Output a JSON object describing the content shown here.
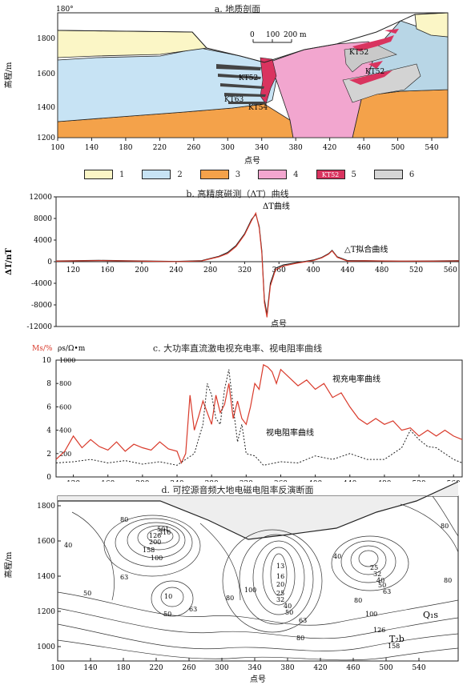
{
  "panels": {
    "a": {
      "title": "a. 地质剖面",
      "ylabel": "高程/m",
      "xlabel": "点号",
      "corner_label": "180°",
      "scale": {
        "labels": [
          "0",
          "100",
          "200 m"
        ]
      },
      "x_ticks": [
        "100",
        "140",
        "180",
        "220",
        "260",
        "300",
        "340",
        "380",
        "420",
        "460",
        "500",
        "540"
      ],
      "y_ticks": [
        "1800",
        "1600",
        "1400",
        "1200"
      ],
      "labels": [
        "KT52",
        "KT52",
        "KT52",
        "KT63",
        "KT54"
      ]
    },
    "legend": [
      {
        "num": "1",
        "color": "#fbf6c6",
        "text": ""
      },
      {
        "num": "2",
        "color": "#c7e3f4",
        "text": ""
      },
      {
        "num": "3",
        "color": "#f4a24a",
        "text": ""
      },
      {
        "num": "4",
        "color": "#f2a6cf",
        "text": ""
      },
      {
        "num": "5",
        "color": "#d9345f",
        "text": "KT52"
      },
      {
        "num": "6",
        "color": "#d6d6d6",
        "text": ""
      }
    ],
    "b": {
      "title": "b. 高精度磁测（ΔT）曲线",
      "ylabel": "ΔT/nT",
      "xlabel": "点号",
      "y_ticks": [
        "12000",
        "8000",
        "4000",
        "0",
        "-4000",
        "-8000",
        "-12000"
      ],
      "x_ticks": [
        "120",
        "160",
        "200",
        "240",
        "280",
        "320",
        "360",
        "400",
        "440",
        "480",
        "520",
        "560"
      ],
      "labels": [
        "ΔT曲线",
        "△T拟合曲线"
      ]
    },
    "c": {
      "title": "c. 大功率直流激电视充电率、视电阻率曲线",
      "ylabel_left": "Ms/%",
      "ylabel_right": "ρs/Ω•m",
      "y_ticks_left": [
        "10",
        "8",
        "6",
        "4",
        "2",
        "0"
      ],
      "y_ticks_right": [
        "1000",
        "800",
        "600",
        "400",
        "200"
      ],
      "x_ticks": [
        "120",
        "160",
        "200",
        "240",
        "280",
        "320",
        "360",
        "400",
        "440",
        "480",
        "520",
        "560"
      ],
      "xlabel": "点号",
      "labels": [
        "视充电率曲线",
        "视电阻率曲线"
      ]
    },
    "d": {
      "title": "d. 可控源音频大地电磁电阻率反演断面",
      "ylabel": "高程/m",
      "xlabel": "点号",
      "y_ticks": [
        "1800",
        "1600",
        "1400",
        "1200",
        "1000"
      ],
      "x_ticks": [
        "100",
        "140",
        "180",
        "220",
        "260",
        "300",
        "340",
        "380",
        "420",
        "460",
        "500",
        "540"
      ],
      "contour_labels": [
        "40",
        "80",
        "50",
        "63",
        "158",
        "126",
        "200",
        "316",
        "501",
        "100",
        "10",
        "50",
        "63",
        "80",
        "100",
        "13",
        "16",
        "20",
        "25",
        "32",
        "40",
        "50",
        "63",
        "80",
        "40",
        "25",
        "32",
        "40",
        "50",
        "63",
        "80",
        "100",
        "126",
        "158",
        "80",
        "80",
        "Q₁s",
        "T₂b"
      ]
    }
  },
  "chart_data": [
    {
      "type": "line",
      "title": "b. 高精度磁测（ΔT）曲线",
      "xlabel": "点号",
      "ylabel": "ΔT/nT",
      "xlim": [
        100,
        570
      ],
      "ylim": [
        -12000,
        12000
      ],
      "series": [
        {
          "name": "ΔT曲线",
          "color": "#222222",
          "x": [
            100,
            150,
            200,
            240,
            270,
            290,
            300,
            310,
            320,
            328,
            333,
            337,
            340,
            343,
            346,
            350,
            356,
            365,
            380,
            400,
            410,
            418,
            422,
            428,
            440,
            460,
            500,
            540,
            570
          ],
          "y": [
            150,
            250,
            150,
            50,
            200,
            1000,
            1700,
            3000,
            5200,
            7800,
            8800,
            6500,
            2000,
            -7000,
            -9800,
            -4000,
            -1200,
            -600,
            -200,
            300,
            800,
            1500,
            2100,
            900,
            200,
            200,
            100,
            150,
            200
          ]
        },
        {
          "name": "△T拟合曲线",
          "color": "#d93a2b",
          "x": [
            100,
            150,
            200,
            240,
            270,
            290,
            300,
            310,
            320,
            328,
            333,
            337,
            340,
            343,
            346,
            350,
            356,
            365,
            380,
            400,
            410,
            418,
            422,
            428,
            440,
            460,
            500,
            540,
            570
          ],
          "y": [
            100,
            200,
            100,
            0,
            150,
            900,
            1500,
            2800,
            5000,
            7600,
            9000,
            6200,
            1500,
            -7600,
            -10300,
            -4500,
            -1500,
            -800,
            -300,
            200,
            700,
            1400,
            2000,
            800,
            100,
            150,
            100,
            100,
            150
          ]
        }
      ]
    },
    {
      "type": "line",
      "title": "c. 大功率直流激电视充电率、视电阻率曲线",
      "xlabel": "点号",
      "xlim": [
        100,
        570
      ],
      "series": [
        {
          "name": "视充电率曲线",
          "color": "#d93a2b",
          "axis": "Ms/%",
          "x": [
            100,
            110,
            120,
            130,
            140,
            150,
            160,
            170,
            180,
            190,
            200,
            210,
            220,
            230,
            240,
            245,
            250,
            255,
            260,
            265,
            270,
            275,
            280,
            285,
            290,
            295,
            300,
            305,
            310,
            315,
            320,
            325,
            330,
            335,
            340,
            345,
            350,
            355,
            360,
            370,
            380,
            390,
            400,
            410,
            420,
            430,
            440,
            450,
            460,
            470,
            480,
            490,
            500,
            510,
            520,
            530,
            540,
            550,
            560,
            570
          ],
          "y": [
            1.5,
            2.2,
            3.5,
            2.5,
            3.2,
            2.6,
            2.3,
            3.0,
            2.2,
            2.8,
            2.5,
            2.3,
            3.0,
            2.4,
            2.2,
            1.2,
            2.0,
            7.0,
            4.0,
            5.2,
            6.5,
            5.5,
            4.5,
            7.0,
            5.5,
            6.2,
            8.0,
            5.0,
            6.5,
            5.0,
            4.5,
            6.0,
            8.0,
            7.5,
            9.6,
            9.4,
            9.0,
            8.0,
            9.2,
            8.5,
            7.8,
            8.3,
            7.5,
            8.0,
            6.8,
            7.2,
            6.0,
            5.0,
            4.5,
            5.0,
            4.5,
            4.8,
            4.0,
            4.2,
            3.5,
            4.0,
            3.5,
            4.0,
            3.5,
            3.2
          ]
        },
        {
          "name": "视电阻率曲线",
          "color": "#222222",
          "axis": "ρs/Ω•m",
          "x": [
            100,
            120,
            140,
            160,
            180,
            200,
            220,
            240,
            250,
            260,
            270,
            275,
            280,
            285,
            290,
            295,
            300,
            305,
            310,
            315,
            320,
            330,
            340,
            360,
            380,
            400,
            420,
            440,
            460,
            480,
            500,
            510,
            515,
            520,
            530,
            540,
            560,
            570
          ],
          "y": [
            120,
            130,
            150,
            120,
            140,
            110,
            130,
            100,
            150,
            200,
            450,
            800,
            700,
            500,
            450,
            750,
            920,
            600,
            300,
            450,
            200,
            180,
            100,
            130,
            120,
            180,
            150,
            200,
            150,
            150,
            250,
            400,
            360,
            320,
            260,
            250,
            150,
            120
          ]
        }
      ]
    }
  ]
}
